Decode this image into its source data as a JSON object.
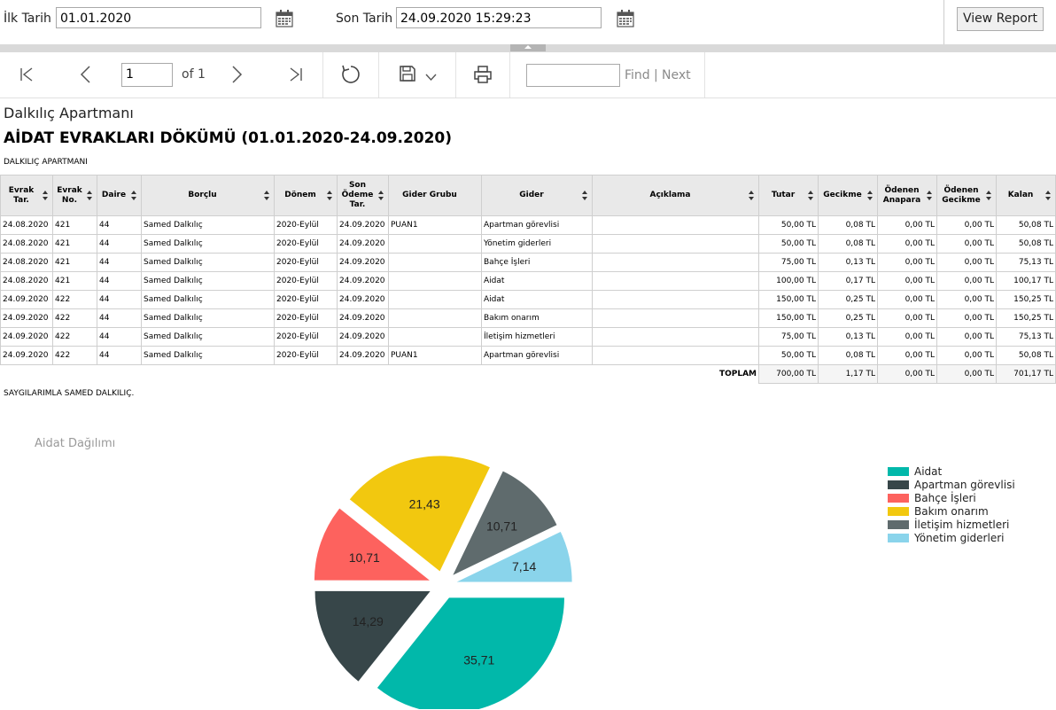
{
  "params": {
    "start_label": "İlk Tarih",
    "start_value": "01.01.2020",
    "end_label": "Son Tarih",
    "end_value": "24.09.2020 15:29:23",
    "view_report": "View Report"
  },
  "toolbar": {
    "page_value": "1",
    "page_of": "of 1",
    "find": "Find",
    "separator": "|",
    "next": "Next",
    "icons": [
      "first-page-icon",
      "previous-page-icon",
      "next-page-icon",
      "last-page-icon",
      "refresh-icon",
      "save-icon",
      "chevron-down-icon",
      "print-icon"
    ]
  },
  "report": {
    "org_name": "Dalkılıç Apartmanı",
    "title": "AİDAT EVRAKLARI DÖKÜMÜ (01.01.2020-24.09.2020)",
    "org_caps": "DALKILIÇ APARTMANI",
    "regards": "SAYGILARIMLA SAMED DALKILIÇ.",
    "columns": [
      {
        "label": "Evrak Tar.",
        "sortable": true
      },
      {
        "label": "Evrak No.",
        "sortable": true
      },
      {
        "label": "Daire",
        "sortable": true
      },
      {
        "label": "Borçlu",
        "sortable": true
      },
      {
        "label": "Dönem",
        "sortable": true
      },
      {
        "label": "Son Ödeme Tar.",
        "sortable": true
      },
      {
        "label": "Gider Grubu",
        "sortable": false
      },
      {
        "label": "Gider",
        "sortable": true
      },
      {
        "label": "Açıklama",
        "sortable": true
      },
      {
        "label": "Tutar",
        "sortable": true
      },
      {
        "label": "Gecikme",
        "sortable": true
      },
      {
        "label": "Ödenen Anapara",
        "sortable": true
      },
      {
        "label": "Ödenen Gecikme",
        "sortable": true
      },
      {
        "label": "Kalan",
        "sortable": true
      }
    ],
    "rows": [
      [
        "24.08.2020",
        "421",
        "44",
        "Samed Dalkılıç",
        "2020-Eylül",
        "24.09.2020",
        "PUAN1",
        "Apartman görevlisi",
        "",
        "50,00 TL",
        "0,08 TL",
        "0,00 TL",
        "0,00 TL",
        "50,08 TL"
      ],
      [
        "24.08.2020",
        "421",
        "44",
        "Samed Dalkılıç",
        "2020-Eylül",
        "24.09.2020",
        "",
        "Yönetim giderleri",
        "",
        "50,00 TL",
        "0,08 TL",
        "0,00 TL",
        "0,00 TL",
        "50,08 TL"
      ],
      [
        "24.08.2020",
        "421",
        "44",
        "Samed Dalkılıç",
        "2020-Eylül",
        "24.09.2020",
        "",
        "Bahçe İşleri",
        "",
        "75,00 TL",
        "0,13 TL",
        "0,00 TL",
        "0,00 TL",
        "75,13 TL"
      ],
      [
        "24.08.2020",
        "421",
        "44",
        "Samed Dalkılıç",
        "2020-Eylül",
        "24.09.2020",
        "",
        "Aidat",
        "",
        "100,00 TL",
        "0,17 TL",
        "0,00 TL",
        "0,00 TL",
        "100,17 TL"
      ],
      [
        "24.09.2020",
        "422",
        "44",
        "Samed Dalkılıç",
        "2020-Eylül",
        "24.09.2020",
        "",
        "Aidat",
        "",
        "150,00 TL",
        "0,25 TL",
        "0,00 TL",
        "0,00 TL",
        "150,25 TL"
      ],
      [
        "24.09.2020",
        "422",
        "44",
        "Samed Dalkılıç",
        "2020-Eylül",
        "24.09.2020",
        "",
        "Bakım onarım",
        "",
        "150,00 TL",
        "0,25 TL",
        "0,00 TL",
        "0,00 TL",
        "150,25 TL"
      ],
      [
        "24.09.2020",
        "422",
        "44",
        "Samed Dalkılıç",
        "2020-Eylül",
        "24.09.2020",
        "",
        "İletişim hizmetleri",
        "",
        "75,00 TL",
        "0,13 TL",
        "0,00 TL",
        "0,00 TL",
        "75,13 TL"
      ],
      [
        "24.09.2020",
        "422",
        "44",
        "Samed Dalkılıç",
        "2020-Eylül",
        "24.09.2020",
        "PUAN1",
        "Apartman görevlisi",
        "",
        "50,00 TL",
        "0,08 TL",
        "0,00 TL",
        "0,00 TL",
        "50,08 TL"
      ]
    ],
    "total_label": "TOPLAM",
    "totals": [
      "700,00 TL",
      "1,17 TL",
      "0,00 TL",
      "0,00 TL",
      "701,17 TL"
    ]
  },
  "chart_data": {
    "type": "pie",
    "title": "Aidat Dağılımı",
    "legend_position": "right",
    "labels": [
      "Aidat",
      "Apartman görevlisi",
      "Bahçe İşleri",
      "Bakım onarım",
      "İletişim hizmetleri",
      "Yönetim giderleri"
    ],
    "values": [
      35.71,
      14.29,
      10.71,
      21.43,
      10.71,
      7.14
    ],
    "value_labels": [
      "35,71",
      "14,29",
      "10,71",
      "21,43",
      "10,71",
      "7,14"
    ],
    "colors": [
      "#01b8aa",
      "#374649",
      "#fd625e",
      "#f2c80f",
      "#5f6b6d",
      "#8ad4eb"
    ],
    "exploded": true
  }
}
